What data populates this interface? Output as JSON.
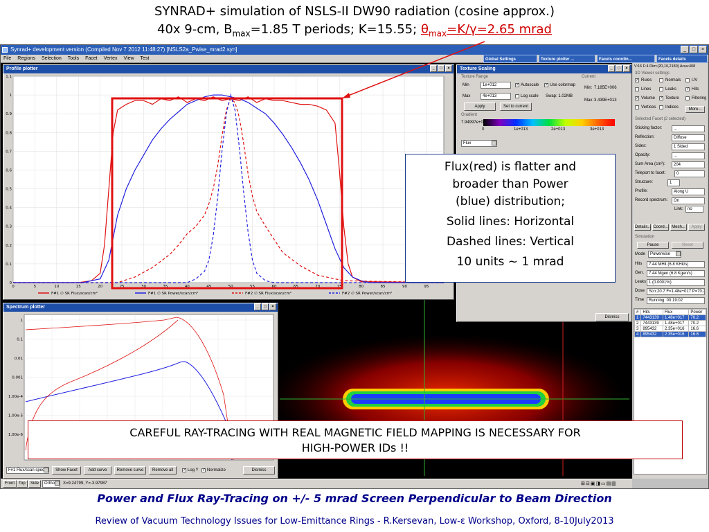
{
  "slide": {
    "title_line1": "SYNRAD+ simulation of NSLS-II DW90 radiation (cosine approx.)",
    "title_line2_prefix": "40x 9-cm, B",
    "title_line2_sub1": "max",
    "title_line2_mid": "=1.85 T periods; K=15.55;",
    "title_line2_theta": "θ",
    "title_line2_sub2": "max",
    "title_line2_red": "=K/γ=2.65 mrad",
    "bottom_title": "Power and Flux Ray-Tracing on +/- 5 mrad Screen Perpendicular to Beam Direction",
    "footer": "Review of Vacuum Technology Issues for Low-Emittance Rings - R.Kersevan, Low-ε Workshop, Oxford, 8-10July2013",
    "annotation_flux": [
      "Flux(red) is flatter and",
      "broader than Power",
      "(blue) distribution;",
      "Solid lines: Horizontal",
      "Dashed lines: Vertical",
      "10 units ~ 1 mrad"
    ],
    "annotation_careful": [
      "CAREFUL RAY-TRACING WITH REAL MAGNETIC FIELD MAPPING IS NECESSARY FOR",
      "HIGH-POWER IDs !!"
    ],
    "colors": {
      "red": "#e01010",
      "blue": "#2020e0",
      "title_blue": "#00008b"
    }
  },
  "app": {
    "window_title": "Synrad+ development version (Compiled Nov  7 2012 11:48:27) [NSLS2a_Pwise_mrad2.syn]",
    "menu": [
      "File",
      "Regions",
      "Selection",
      "Tools",
      "Facet",
      "Vertex",
      "View",
      "Test"
    ],
    "top_buttons": [
      "Global Settings",
      "Texture plotter ...",
      "Facets coordin...",
      "Facets details"
    ],
    "status_bar": {
      "tabs": [
        "Front",
        "Top",
        "Side"
      ],
      "mode": "Ortho",
      "coords": "X=9.24799, Y=-3.97987"
    }
  },
  "profile_plotter": {
    "title": "Profile plotter",
    "y_ticks": [
      "1.1",
      "1",
      "0.9",
      "0.8",
      "0.7",
      "0.6",
      "0.5",
      "0.4",
      "0.3",
      "0.2",
      "0.1",
      "0"
    ],
    "x_ticks": [
      "0",
      "5",
      "10",
      "15",
      "20",
      "25",
      "30",
      "35",
      "40",
      "45",
      "50",
      "55",
      "60",
      "65",
      "70",
      "75",
      "80",
      "85",
      "90",
      "95"
    ],
    "legend": [
      {
        "label": "F#1 ∅ SR Flux/scan/cm²",
        "color": "#e01010",
        "dash": false
      },
      {
        "label": "F#1 ∅ SR Power/scan/cm²",
        "color": "#2020e0",
        "dash": false
      },
      {
        "label": "F#2 ∅ SR Flux/scan/cm²",
        "color": "#e01010",
        "dash": true
      },
      {
        "label": "F#2 ∅ SR Power/scan/cm²",
        "color": "#2020e0",
        "dash": true
      }
    ]
  },
  "chart_data": {
    "type": "line",
    "title": "",
    "xlabel": "",
    "ylabel": "",
    "xlim": [
      0,
      99
    ],
    "ylim": [
      0,
      1.1
    ],
    "grid": true,
    "legend_position": "bottom",
    "series": [
      {
        "name": "F#1 ∅ SR Flux/scan/cm²",
        "style": "solid",
        "color": "#e01010",
        "x": [
          0,
          15,
          18,
          20,
          21,
          22,
          23,
          24,
          26,
          28,
          30,
          32,
          34,
          36,
          38,
          40,
          42,
          44,
          46,
          48,
          50,
          52,
          54,
          56,
          58,
          60,
          62,
          64,
          66,
          68,
          70,
          72,
          74,
          75,
          76,
          77,
          78,
          80,
          99
        ],
        "y": [
          0,
          0,
          0.01,
          0.05,
          0.2,
          0.5,
          0.8,
          0.92,
          0.95,
          0.97,
          0.97,
          0.95,
          0.98,
          0.97,
          0.99,
          0.96,
          0.98,
          0.97,
          0.99,
          0.97,
          0.98,
          0.97,
          0.99,
          0.96,
          0.98,
          0.97,
          0.97,
          0.96,
          0.95,
          0.95,
          0.94,
          0.92,
          0.85,
          0.6,
          0.3,
          0.1,
          0.03,
          0.005,
          0
        ]
      },
      {
        "name": "F#1 ∅ SR Power/scan/cm²",
        "style": "solid",
        "color": "#2020e0",
        "x": [
          0,
          16,
          20,
          22,
          24,
          26,
          28,
          30,
          32,
          34,
          36,
          38,
          40,
          42,
          44,
          46,
          48,
          50,
          52,
          54,
          56,
          58,
          60,
          62,
          64,
          66,
          68,
          70,
          72,
          74,
          76,
          78,
          80,
          82,
          99
        ],
        "y": [
          0,
          0,
          0.02,
          0.12,
          0.36,
          0.5,
          0.6,
          0.68,
          0.76,
          0.82,
          0.87,
          0.91,
          0.95,
          0.97,
          0.99,
          1.0,
          1.0,
          0.99,
          0.98,
          0.96,
          0.93,
          0.9,
          0.85,
          0.79,
          0.72,
          0.64,
          0.55,
          0.44,
          0.31,
          0.18,
          0.08,
          0.03,
          0.01,
          0,
          0
        ]
      },
      {
        "name": "F#2 ∅ SR Flux/scan/cm²",
        "style": "dashed",
        "color": "#e01010",
        "x": [
          0,
          24,
          28,
          32,
          36,
          38,
          40,
          42,
          44,
          45,
          46,
          47,
          48,
          49,
          50,
          51,
          52,
          53,
          54,
          55,
          56,
          58,
          60,
          62,
          66,
          70,
          76,
          99
        ],
        "y": [
          0,
          0,
          0.03,
          0.08,
          0.15,
          0.2,
          0.26,
          0.3,
          0.36,
          0.42,
          0.5,
          0.62,
          0.78,
          0.92,
          0.98,
          0.96,
          0.88,
          0.74,
          0.58,
          0.46,
          0.38,
          0.3,
          0.23,
          0.16,
          0.09,
          0.04,
          0.01,
          0
        ]
      },
      {
        "name": "F#2 ∅ SR Power/scan/cm²",
        "style": "dashed",
        "color": "#2020e0",
        "x": [
          0,
          40,
          42,
          44,
          45,
          46,
          47,
          48,
          49,
          50,
          51,
          52,
          53,
          54,
          55,
          56,
          58,
          60,
          99
        ],
        "y": [
          0,
          0,
          0.02,
          0.06,
          0.12,
          0.25,
          0.45,
          0.7,
          0.9,
          1.0,
          0.92,
          0.72,
          0.48,
          0.27,
          0.12,
          0.05,
          0.01,
          0,
          0
        ]
      }
    ]
  },
  "texture_scaling": {
    "title": "Texture Scaling",
    "range_group": "Texture Range",
    "min_label": "Min",
    "min_value": "1e+012",
    "max_label": "Max",
    "max_value": "4e+013",
    "autoscale": "Autoscale",
    "use_colormap": "Use colormap",
    "log_scale": "Log scale",
    "swap_label": "Swap: 1.02MB",
    "apply": "Apply",
    "set_to_current": "Set to current",
    "current_group": "Current",
    "current_min_label": "Min:",
    "current_min": "7.185E+006",
    "current_max_label": "Max:",
    "current_max": "3.439E+013",
    "gradient_group": "Gradient",
    "gradient_readout": "7.94997e+013",
    "gradient_ticks": [
      "0",
      "1e+013",
      "2e+013",
      "3e+013"
    ],
    "quantity": "Flux"
  },
  "spectrum_plotter": {
    "title": "Spectrum plotter",
    "y_ticks": [
      "1",
      "0.1",
      "0.01",
      "0.001",
      "1.00e-4",
      "1.00e-5",
      "1.00e-6"
    ],
    "controls": {
      "facet_select": "F#1 Flux/scan spect",
      "show_facet": "Show Facet",
      "add_curve": "Add curve",
      "remove_curve": "Remove curve",
      "remove_all": "Remove all",
      "log_y": "Log Y",
      "normalize": "Normalize",
      "dismiss": "Dismiss"
    }
  },
  "texture_dismiss": "Dismiss",
  "right_panel": {
    "header": "V:16 F:4 Dim:(20,10,2180) Area:408",
    "viewer_group": "3D Viewer settings",
    "viewer_checks": [
      {
        "label": "Rules",
        "checked": true
      },
      {
        "label": "Normals",
        "checked": false
      },
      {
        "label": "UV",
        "checked": false
      },
      {
        "label": "Lines",
        "checked": false
      },
      {
        "label": "Leaks",
        "checked": false
      },
      {
        "label": "Hits",
        "checked": true
      },
      {
        "label": "Volume",
        "checked": true
      },
      {
        "label": "Texture",
        "checked": true
      },
      {
        "label": "Filtering",
        "checked": false
      },
      {
        "label": "Vertices",
        "checked": false
      },
      {
        "label": "Indices",
        "checked": false
      }
    ],
    "more_button": "More...",
    "facet_group": "Selected Facet (2 selected)",
    "facet_rows": [
      {
        "label": "Sticking factor:",
        "value": "..."
      },
      {
        "label": "Reflection:",
        "value": "Diffuse"
      },
      {
        "label": "Sides:",
        "value": "1 Sided"
      },
      {
        "label": "Opacity:",
        "value": "..."
      },
      {
        "label": "Sum Area (cm²):",
        "value": "204"
      },
      {
        "label": "Teleport to facet:",
        "value": "0"
      },
      {
        "label": "Structure:",
        "value": "1"
      },
      {
        "label": "Profile:",
        "value": "Along U"
      },
      {
        "label": "Record spectrum:",
        "value": "On"
      }
    ],
    "link_label": "Link:",
    "link_value": "no",
    "facet_buttons": [
      "Details...",
      "Coord...",
      "Mesh...",
      "Apply"
    ],
    "simulation_group": "Simulation",
    "pause": "Pause",
    "reset": "Reset",
    "mode_label": "Mode",
    "mode_value": "Powerwise",
    "sim_rows": [
      {
        "label": "Hits",
        "value": "7.44 MHit (6.8 KHit/s)"
      },
      {
        "label": "Gen.",
        "value": "7.44 Mgen (6.8 Kgen/s)"
      },
      {
        "label": "Leaks",
        "value": "1 (0.0001%)"
      },
      {
        "label": "Dose",
        "value": "Scn:20.7 F=1.48e+017 P=70.2"
      },
      {
        "label": "Time",
        "value": "Running: 00:19:02"
      }
    ],
    "table_headers": [
      "#",
      "Hits",
      "Flux",
      "Power"
    ],
    "table_rows": [
      [
        "1",
        "7443139",
        "1.48e+017",
        "70.2"
      ],
      [
        "2",
        "7443139",
        "1.48e+017",
        "70.2"
      ],
      [
        "3",
        "895432",
        "2.35e+016",
        "16.6"
      ],
      [
        "4",
        "895432",
        "2.35e+016",
        "16.6"
      ]
    ],
    "selected_rows": [
      0,
      3
    ]
  }
}
